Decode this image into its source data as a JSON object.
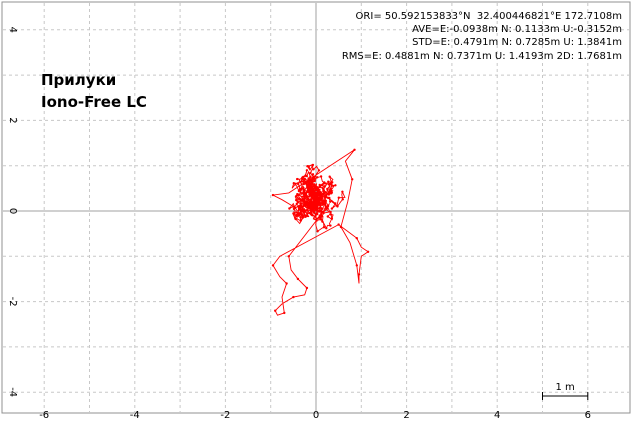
{
  "chart_data": {
    "type": "scatter",
    "title": [
      "Прилуки",
      "Iono-Free LC"
    ],
    "stats": [
      "ORI= 50.592153833°N  32.400446821°E 172.7108m",
      "AVE=E:-0.0938m N: 0.1133m U:-0.3152m",
      "STD=E: 0.4791m N: 0.7285m U: 1.3841m",
      "RMS=E: 0.4881m N: 0.7371m U: 1.4193m 2D: 1.7681m"
    ],
    "scale_label": "1 m",
    "xlim": [
      -6.9,
      6.9
    ],
    "ylim": [
      -4.2,
      4.6
    ],
    "xticks": [
      -6,
      -4,
      -2,
      0,
      2,
      4,
      6
    ],
    "yticks": [
      -4,
      -2,
      0,
      2,
      4
    ],
    "grid": true,
    "series_color": "#ff0000",
    "track_summary": {
      "east_range_m": [
        -1.0,
        1.2
      ],
      "north_range_m": [
        -2.3,
        1.4
      ],
      "centroid": [
        -0.09,
        0.11
      ]
    }
  }
}
